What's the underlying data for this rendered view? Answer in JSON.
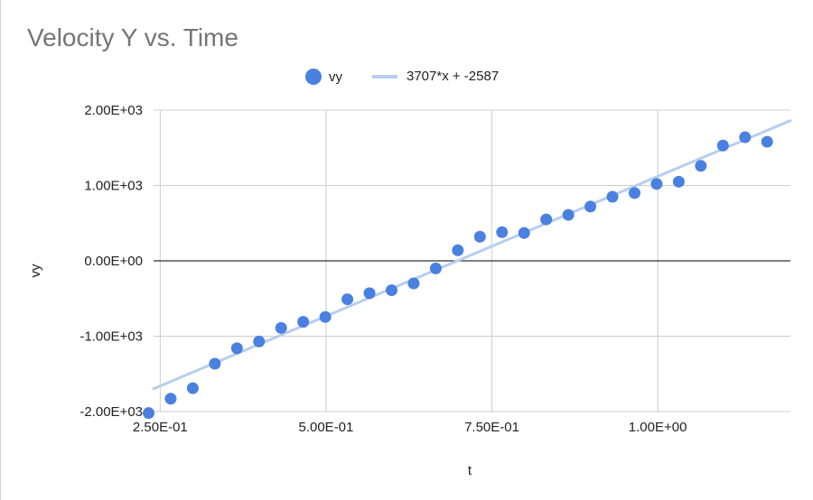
{
  "chart_data": {
    "type": "scatter",
    "title": "Velocity Y vs. Time",
    "xlabel": "t",
    "ylabel": "vy",
    "xlim": [
      0.24,
      1.2
    ],
    "ylim": [
      -2000,
      2000
    ],
    "x_ticks": [
      0.25,
      0.5,
      0.75,
      1.0
    ],
    "x_tick_labels": [
      "2.50E-01",
      "5.00E-01",
      "7.50E-01",
      "1.00E+00"
    ],
    "y_ticks": [
      2000,
      1000,
      0,
      -1000,
      -2000
    ],
    "y_tick_labels": [
      "2.00E+03",
      "1.00E+03",
      "0.00E+00",
      "-1.00E+03",
      "-2.00E+03"
    ],
    "grid": true,
    "legend_position": "top-center",
    "series": [
      {
        "name": "vy",
        "color": "#4a80e0",
        "points": [
          {
            "x": 0.2325,
            "y": -2020
          },
          {
            "x": 0.2658,
            "y": -1830
          },
          {
            "x": 0.2991,
            "y": -1690
          },
          {
            "x": 0.3324,
            "y": -1365
          },
          {
            "x": 0.3657,
            "y": -1160
          },
          {
            "x": 0.399,
            "y": -1070
          },
          {
            "x": 0.4323,
            "y": -890
          },
          {
            "x": 0.4656,
            "y": -810
          },
          {
            "x": 0.4989,
            "y": -745
          },
          {
            "x": 0.5322,
            "y": -510
          },
          {
            "x": 0.5655,
            "y": -430
          },
          {
            "x": 0.5988,
            "y": -390
          },
          {
            "x": 0.6321,
            "y": -300
          },
          {
            "x": 0.6654,
            "y": -100
          },
          {
            "x": 0.6987,
            "y": 140
          },
          {
            "x": 0.732,
            "y": 320
          },
          {
            "x": 0.7653,
            "y": 380
          },
          {
            "x": 0.7986,
            "y": 370
          },
          {
            "x": 0.8319,
            "y": 550
          },
          {
            "x": 0.8652,
            "y": 610
          },
          {
            "x": 0.8985,
            "y": 720
          },
          {
            "x": 0.9318,
            "y": 850
          },
          {
            "x": 0.9651,
            "y": 900
          },
          {
            "x": 0.9984,
            "y": 1020
          },
          {
            "x": 1.0317,
            "y": 1050
          },
          {
            "x": 1.065,
            "y": 1260
          },
          {
            "x": 1.0983,
            "y": 1530
          },
          {
            "x": 1.1316,
            "y": 1640
          },
          {
            "x": 1.1649,
            "y": 1580
          }
        ]
      },
      {
        "name": "3707*x + -2587",
        "color": "#b7cdf1",
        "type": "trendline",
        "slope": 3707,
        "intercept": -2587
      }
    ]
  }
}
